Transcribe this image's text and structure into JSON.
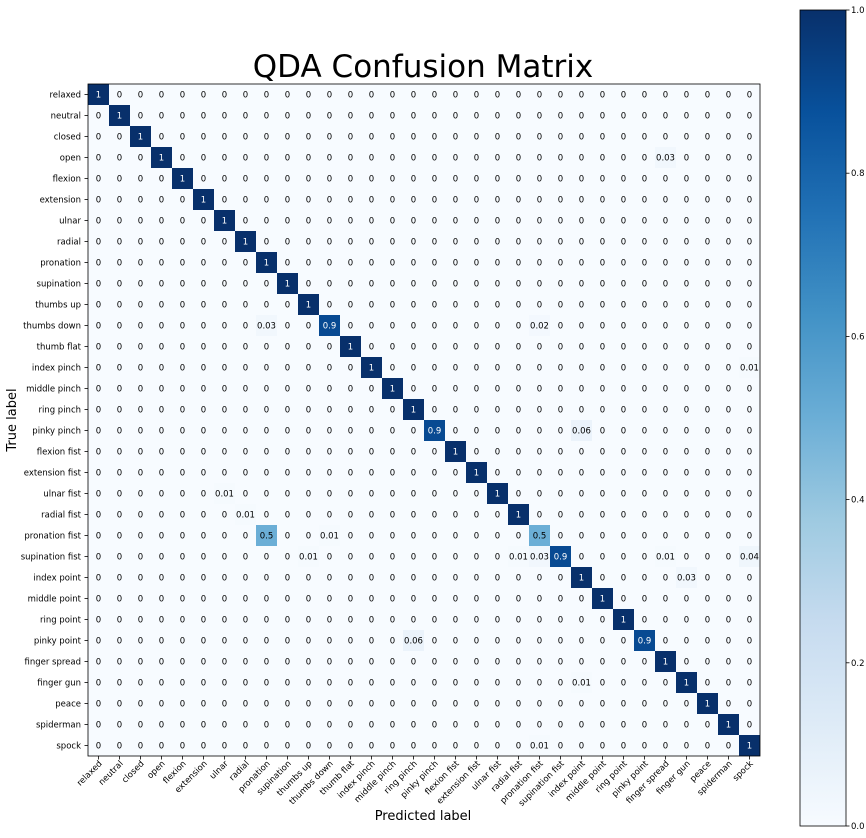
{
  "chart_data": {
    "type": "heatmap",
    "title": "QDA Confusion Matrix",
    "xlabel": "Predicted label",
    "ylabel": "True label",
    "labels": [
      "relaxed",
      "neutral",
      "closed",
      "open",
      "flexion",
      "extension",
      "ulnar",
      "radial",
      "pronation",
      "supination",
      "thumbs up",
      "thumbs down",
      "thumb flat",
      "index pinch",
      "middle pinch",
      "ring pinch",
      "pinky pinch",
      "flexion fist",
      "extension fist",
      "ulnar fist",
      "radial fist",
      "pronation fist",
      "supination fist",
      "index point",
      "middle point",
      "ring point",
      "pinky point",
      "finger spread",
      "finger gun",
      "peace",
      "spiderman",
      "spock"
    ],
    "nonzero": [
      [
        0,
        0,
        "1"
      ],
      [
        1,
        1,
        "1"
      ],
      [
        2,
        2,
        "1"
      ],
      [
        3,
        3,
        "1"
      ],
      [
        3,
        27,
        "0.03"
      ],
      [
        4,
        4,
        "1"
      ],
      [
        5,
        5,
        "1"
      ],
      [
        6,
        6,
        "1"
      ],
      [
        7,
        7,
        "1"
      ],
      [
        8,
        8,
        "1"
      ],
      [
        9,
        9,
        "1"
      ],
      [
        10,
        10,
        "1"
      ],
      [
        11,
        8,
        "0.03"
      ],
      [
        11,
        11,
        "0.9"
      ],
      [
        11,
        21,
        "0.02"
      ],
      [
        12,
        12,
        "1"
      ],
      [
        13,
        13,
        "1"
      ],
      [
        13,
        31,
        "0.01"
      ],
      [
        14,
        14,
        "1"
      ],
      [
        15,
        15,
        "1"
      ],
      [
        16,
        16,
        "0.9"
      ],
      [
        16,
        23,
        "0.06"
      ],
      [
        17,
        17,
        "1"
      ],
      [
        18,
        18,
        "1"
      ],
      [
        19,
        6,
        "0.01"
      ],
      [
        19,
        19,
        "1"
      ],
      [
        20,
        7,
        "0.01"
      ],
      [
        20,
        20,
        "1"
      ],
      [
        21,
        8,
        "0.5"
      ],
      [
        21,
        11,
        "0.01"
      ],
      [
        21,
        21,
        "0.5"
      ],
      [
        22,
        10,
        "0.01"
      ],
      [
        22,
        20,
        "0.01"
      ],
      [
        22,
        21,
        "0.03"
      ],
      [
        22,
        22,
        "0.9"
      ],
      [
        22,
        27,
        "0.01"
      ],
      [
        22,
        31,
        "0.04"
      ],
      [
        23,
        23,
        "1"
      ],
      [
        23,
        28,
        "0.03"
      ],
      [
        24,
        24,
        "1"
      ],
      [
        25,
        25,
        "1"
      ],
      [
        26,
        15,
        "0.06"
      ],
      [
        26,
        26,
        "0.9"
      ],
      [
        27,
        27,
        "1"
      ],
      [
        28,
        23,
        "0.01"
      ],
      [
        28,
        28,
        "1"
      ],
      [
        29,
        29,
        "1"
      ],
      [
        30,
        30,
        "1"
      ],
      [
        31,
        21,
        "0.01"
      ],
      [
        31,
        31,
        "1"
      ]
    ],
    "zero_label": "0",
    "colorbar": {
      "ticks": [
        "0.0",
        "0.2",
        "0.4",
        "0.6",
        "0.8",
        "1.0"
      ],
      "range": [
        0,
        1
      ],
      "colormap": "Blues"
    }
  }
}
